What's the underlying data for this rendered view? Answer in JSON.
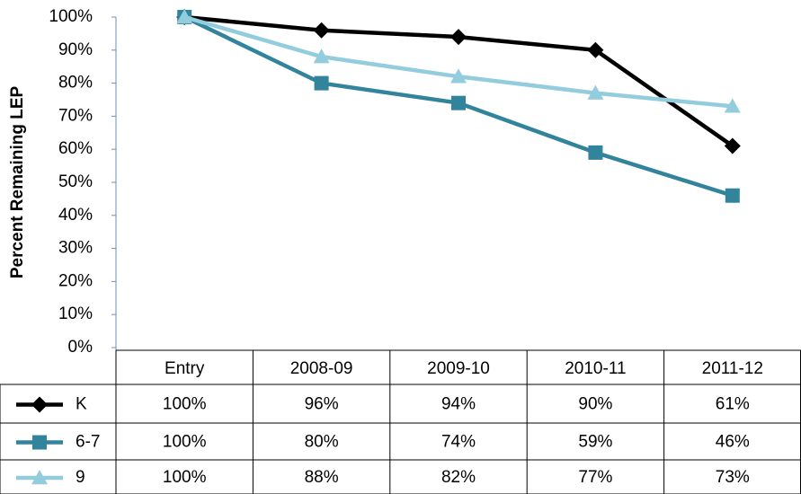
{
  "chart_data": {
    "type": "line",
    "y_label": "Percent Remaining LEP",
    "categories": [
      "Entry",
      "2008-09",
      "2009-10",
      "2010-11",
      "2011-12"
    ],
    "series": [
      {
        "name": "K",
        "color": "#000000",
        "marker": "diamond",
        "values": [
          100,
          96,
          94,
          90,
          61
        ],
        "value_labels": [
          "100%",
          "96%",
          "94%",
          "90%",
          "61%"
        ]
      },
      {
        "name": "6-7",
        "color": "#31849b",
        "marker": "square",
        "values": [
          100,
          80,
          74,
          59,
          46
        ],
        "value_labels": [
          "100%",
          "80%",
          "74%",
          "59%",
          "46%"
        ]
      },
      {
        "name": "9",
        "color": "#93cddd",
        "marker": "triangle",
        "values": [
          100,
          88,
          82,
          77,
          73
        ],
        "value_labels": [
          "100%",
          "88%",
          "82%",
          "77%",
          "73%"
        ]
      }
    ],
    "ylim": [
      0,
      100
    ],
    "yticks": [
      {
        "value": 0,
        "label": "0%"
      },
      {
        "value": 10,
        "label": "10%"
      },
      {
        "value": 20,
        "label": "20%"
      },
      {
        "value": 30,
        "label": "30%"
      },
      {
        "value": 40,
        "label": "40%"
      },
      {
        "value": 50,
        "label": "50%"
      },
      {
        "value": 60,
        "label": "60%"
      },
      {
        "value": 70,
        "label": "70%"
      },
      {
        "value": 80,
        "label": "80%"
      },
      {
        "value": 90,
        "label": "90%"
      },
      {
        "value": 100,
        "label": "100%"
      }
    ],
    "grid": false
  }
}
